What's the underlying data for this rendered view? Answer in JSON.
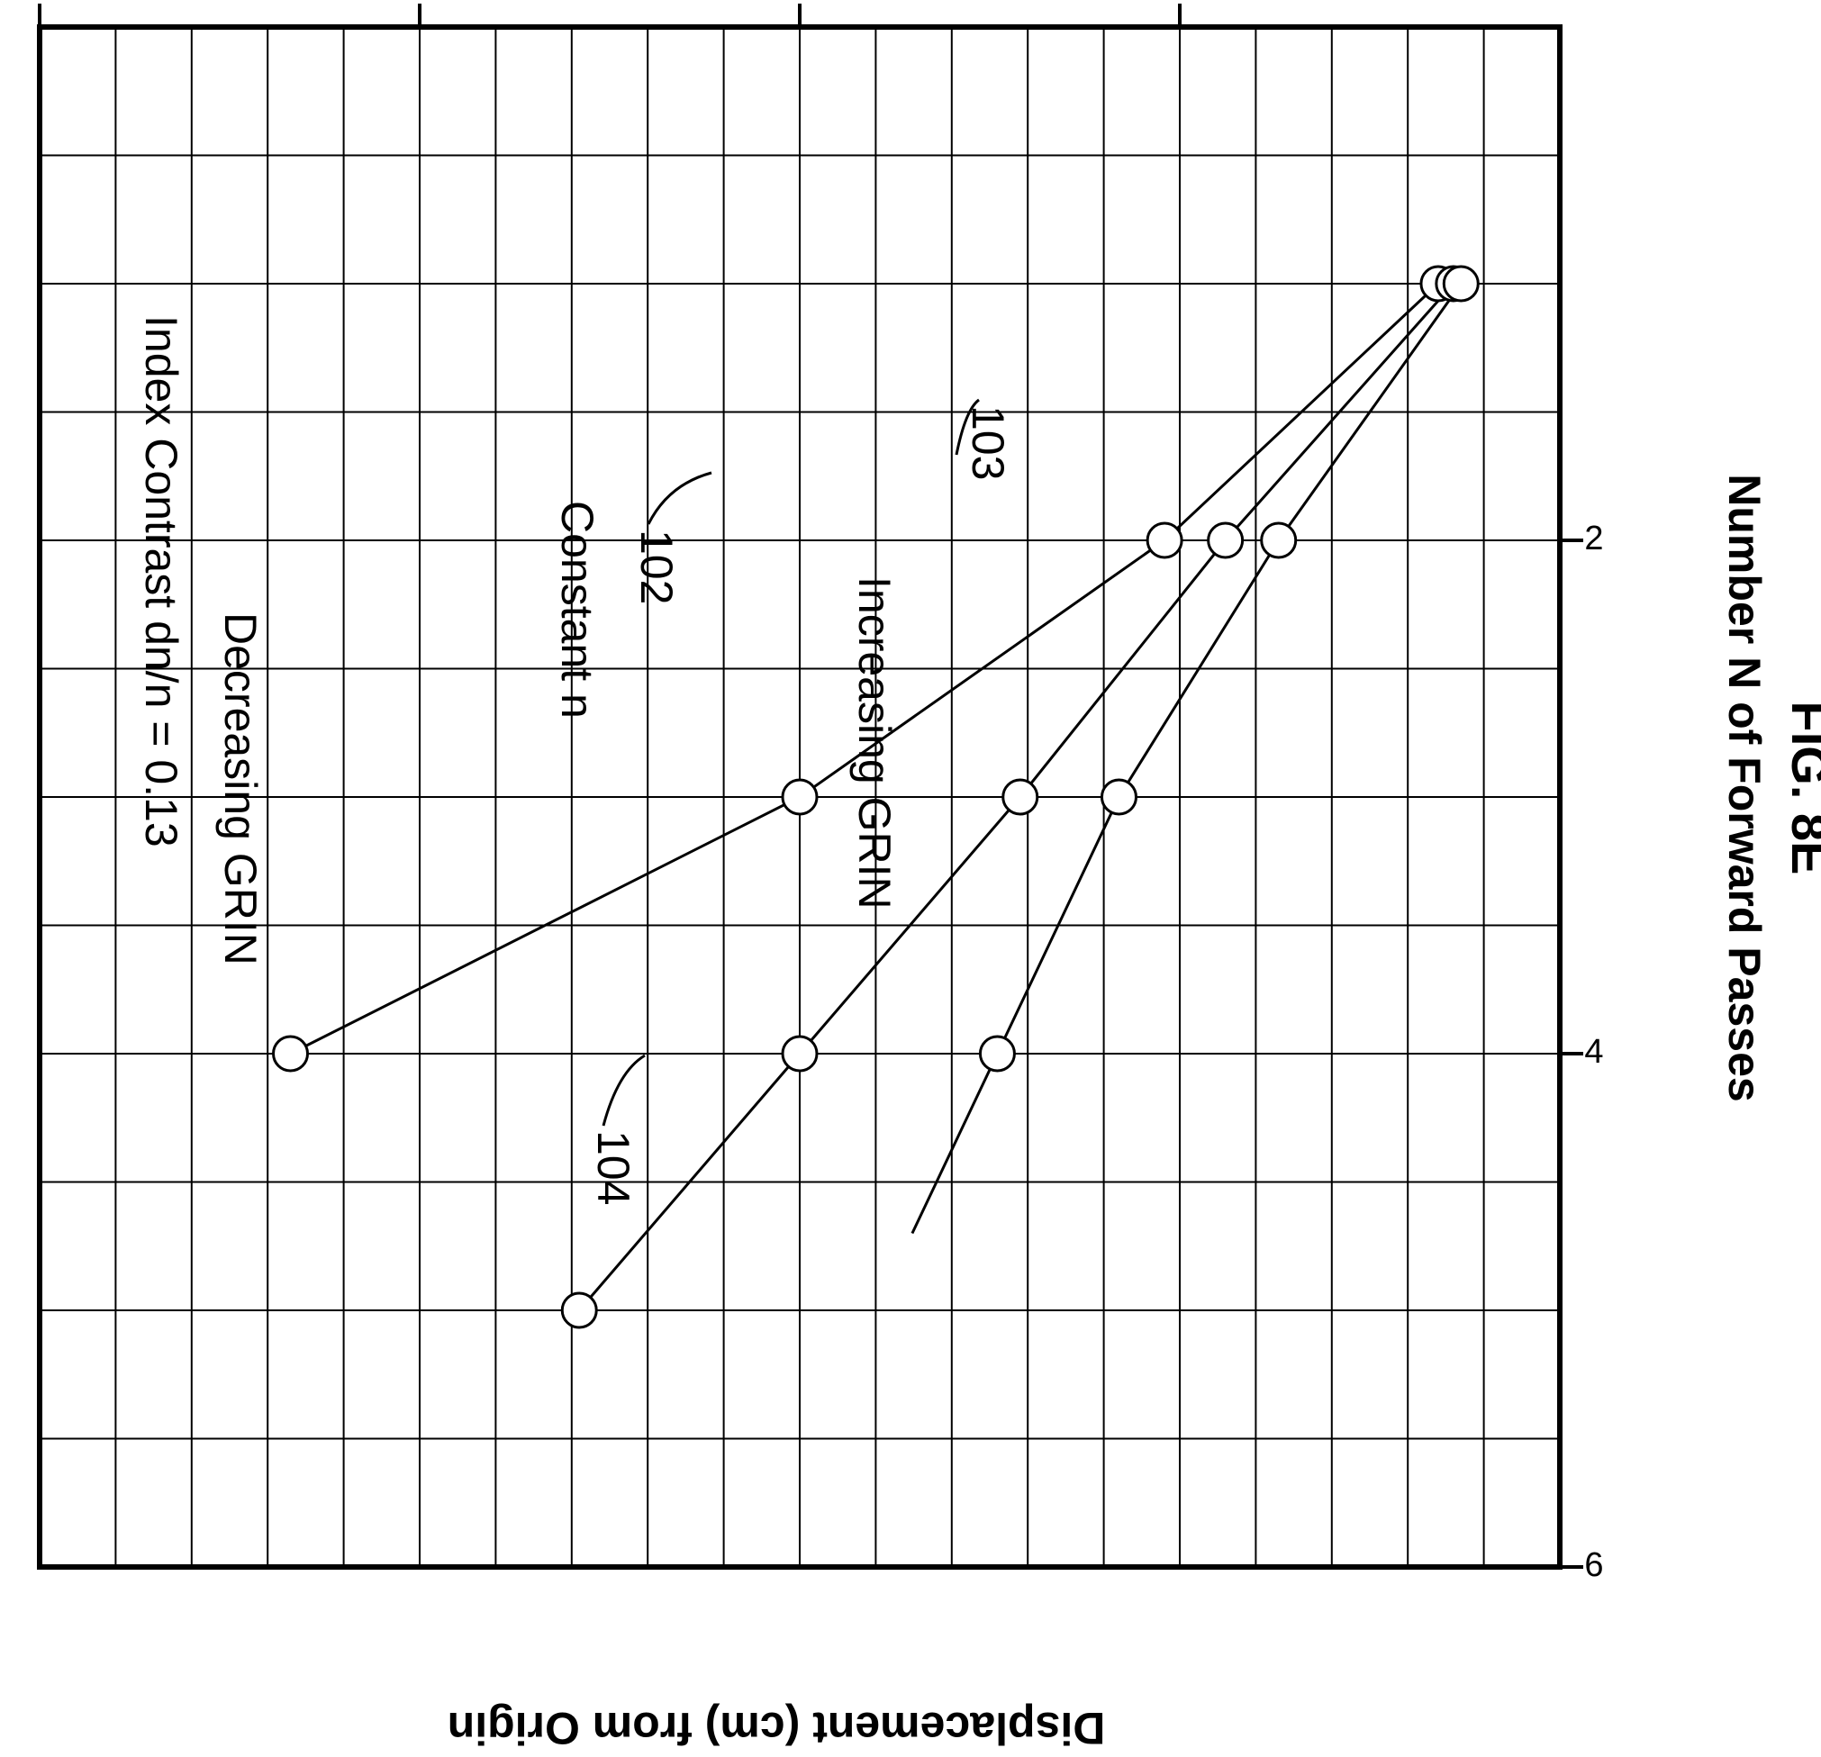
{
  "chart_data": {
    "type": "line",
    "title": "Index Contrast dn/n = 0.13",
    "xlabel": "Number N of Forward Passes",
    "ylabel": "Displacement (cm) from Origin",
    "figure_label": "FIG. 8E",
    "xlim": [
      0,
      6
    ],
    "ylim": [
      0,
      20
    ],
    "x_ticks": [
      2,
      4,
      6
    ],
    "y_ticks": [
      5,
      10,
      15,
      20
    ],
    "x_minor_step": 0.5,
    "y_minor_step": 1,
    "grid": true,
    "series": [
      {
        "name": "Decreasing GRIN",
        "ref": "104",
        "x": [
          1,
          2,
          3,
          4
        ],
        "y": [
          1.6,
          5.2,
          10.0,
          16.7
        ]
      },
      {
        "name": "Constant n",
        "ref": "102",
        "x": [
          1,
          2,
          3,
          4,
          5
        ],
        "y": [
          1.4,
          4.4,
          7.1,
          10.0,
          12.9
        ]
      },
      {
        "name": "Increasing GRIN",
        "ref": "103",
        "x": [
          1,
          2,
          3,
          4
        ],
        "y": [
          1.3,
          3.7,
          5.8,
          7.4
        ]
      }
    ]
  }
}
